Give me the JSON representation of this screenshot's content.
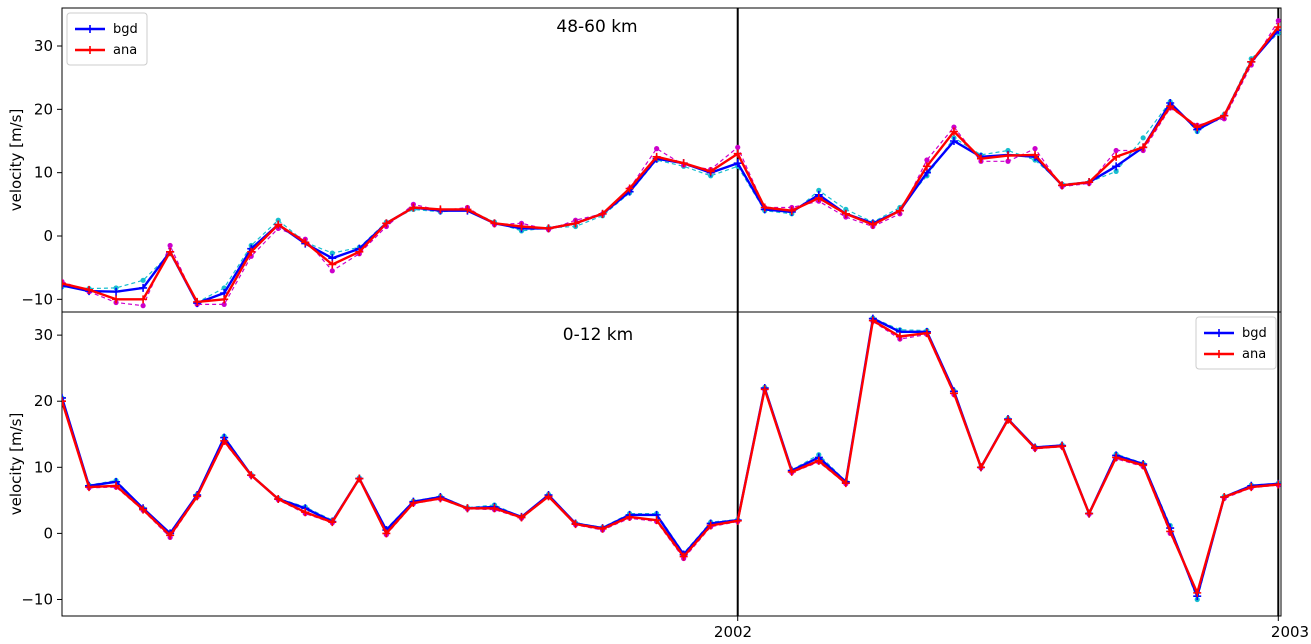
{
  "x_labels": {
    "tick_2002": "2002",
    "tick_2003": "2003"
  },
  "colors": {
    "bgd": "#0000ff",
    "ana": "#ff0000",
    "bgd_member": "#17becf",
    "ana_member": "#cc00cc",
    "vline": "#000000"
  },
  "chart_data": [
    {
      "type": "line",
      "title": "48-60 km",
      "ylabel": "velocity [m/s]",
      "ylim": [
        -12,
        36
      ],
      "yticks": [
        -10,
        0,
        10,
        20,
        30
      ],
      "xlim": [
        0,
        45.1
      ],
      "x": [
        0,
        1,
        2,
        3,
        4,
        5,
        6,
        7,
        8,
        9,
        10,
        11,
        12,
        13,
        14,
        15,
        16,
        17,
        18,
        19,
        20,
        21,
        22,
        23,
        24,
        25,
        26,
        27,
        28,
        29,
        30,
        31,
        32,
        33,
        34,
        35,
        36,
        37,
        38,
        39,
        40,
        41,
        42,
        43,
        44,
        45
      ],
      "vlines": [
        {
          "x": 25,
          "label": "2002"
        },
        {
          "x": 45,
          "label": "2003"
        }
      ],
      "legend": {
        "position": "upper left",
        "entries": [
          "bgd",
          "ana"
        ]
      },
      "series": [
        {
          "name": "bgd",
          "values": [
            -7.8,
            -8.7,
            -8.8,
            -8.2,
            -2.5,
            -10.6,
            -9,
            -2,
            1.8,
            -1.2,
            -3.5,
            -2,
            2,
            4.5,
            4,
            4,
            2,
            1.2,
            1.2,
            2,
            3.5,
            7,
            12.2,
            11.5,
            10,
            11.5,
            4.2,
            3.8,
            6.5,
            3.5,
            2,
            4,
            10,
            15,
            12.5,
            12.8,
            12.5,
            8,
            8.5,
            11,
            14,
            21,
            16.8,
            19,
            27.5,
            32.5
          ]
        },
        {
          "name": "ana",
          "values": [
            -7.5,
            -8.5,
            -10,
            -10,
            -2.5,
            -10.4,
            -10,
            -2.5,
            1.8,
            -1,
            -4.5,
            -2.5,
            2,
            4.5,
            4.2,
            4.2,
            2,
            1.5,
            1.2,
            2,
            3.5,
            7.5,
            12.5,
            11.5,
            10.2,
            13,
            4.5,
            4,
            6,
            3.5,
            1.8,
            4,
            11,
            16.5,
            12.2,
            12.7,
            12.8,
            8,
            8.5,
            12.5,
            14,
            20.5,
            17.2,
            19,
            27.5,
            33
          ]
        },
        {
          "name": "",
          "style": "member-bgd",
          "values": [
            -8,
            -8.3,
            -8.2,
            -7,
            -2.8,
            -10.5,
            -8.2,
            -1.5,
            2.5,
            -1,
            -2.7,
            -1.8,
            2.2,
            4.2,
            3.8,
            4.2,
            2.2,
            0.8,
            1.3,
            1.5,
            3.2,
            6.8,
            12,
            11,
            9.5,
            11,
            4,
            3.5,
            7.2,
            4.2,
            2.2,
            4.5,
            9.5,
            15.5,
            12.8,
            13.5,
            12,
            8.2,
            8.5,
            10.2,
            15.5,
            21.2,
            16.5,
            19.2,
            28,
            32
          ]
        },
        {
          "name": "",
          "style": "member-ana",
          "values": [
            -7.2,
            -8.8,
            -10.5,
            -11,
            -1.5,
            -10.8,
            -10.8,
            -3.2,
            1.2,
            -0.5,
            -5.5,
            -2.8,
            1.5,
            5,
            4,
            4.5,
            1.8,
            2,
            1,
            2.5,
            3.5,
            7.5,
            13.8,
            11.2,
            10.5,
            14,
            4.5,
            4.5,
            5.5,
            3,
            1.5,
            3.5,
            12,
            17.2,
            11.8,
            11.8,
            13.8,
            7.8,
            8.3,
            13.5,
            13.5,
            20.2,
            17.5,
            18.5,
            27,
            34
          ]
        }
      ]
    },
    {
      "type": "line",
      "title": "0-12 km",
      "ylabel": "velocity [m/s]",
      "ylim": [
        -12.5,
        33.5
      ],
      "yticks": [
        -10,
        0,
        10,
        20,
        30
      ],
      "xlim": [
        0,
        45.1
      ],
      "x": [
        0,
        1,
        2,
        3,
        4,
        5,
        6,
        7,
        8,
        9,
        10,
        11,
        12,
        13,
        14,
        15,
        16,
        17,
        18,
        19,
        20,
        21,
        22,
        23,
        24,
        25,
        26,
        27,
        28,
        29,
        30,
        31,
        32,
        33,
        34,
        35,
        36,
        37,
        38,
        39,
        40,
        41,
        42,
        43,
        44,
        45
      ],
      "vlines": [
        {
          "x": 25,
          "label": "2002"
        },
        {
          "x": 45,
          "label": "2003"
        }
      ],
      "legend": {
        "position": "upper right",
        "entries": [
          "bgd",
          "ana"
        ]
      },
      "series": [
        {
          "name": "bgd",
          "values": [
            20.5,
            7.2,
            7.8,
            3.8,
            0,
            5.8,
            14.5,
            8.8,
            5.2,
            3.8,
            1.8,
            8.3,
            0.5,
            4.8,
            5.5,
            3.8,
            4,
            2.5,
            5.8,
            1.5,
            0.8,
            2.8,
            2.8,
            -3.2,
            1.5,
            2,
            22,
            9.5,
            11.5,
            7.8,
            32.5,
            30.5,
            30.5,
            21.5,
            10,
            17.3,
            13,
            13.3,
            3,
            11.8,
            10.5,
            0.8,
            -9.5,
            5.5,
            7.2,
            7.5
          ]
        },
        {
          "name": "ana",
          "values": [
            20,
            7,
            7.2,
            3.6,
            -0.3,
            5.6,
            14,
            8.8,
            5.2,
            3.2,
            1.7,
            8.3,
            0,
            4.6,
            5.3,
            3.8,
            3.8,
            2.4,
            5.6,
            1.4,
            0.7,
            2.5,
            2,
            -3.5,
            1.2,
            1.9,
            21.8,
            9.3,
            11,
            7.6,
            32.2,
            29.8,
            30.3,
            21.2,
            10,
            17.2,
            12.9,
            13.2,
            3,
            11.5,
            10.3,
            0.3,
            -9,
            5.5,
            7,
            7.4
          ]
        },
        {
          "name": "",
          "style": "member-bgd",
          "values": [
            20.5,
            7.3,
            8,
            3.8,
            0.1,
            5.9,
            14.7,
            8.9,
            5.3,
            4,
            2,
            8.4,
            0.7,
            4.9,
            5.6,
            3.9,
            4.3,
            2.5,
            5.9,
            1.6,
            0.9,
            3,
            3,
            -3,
            1.7,
            2.1,
            22.1,
            9.6,
            11.9,
            7.9,
            32.6,
            30.8,
            30.7,
            21.6,
            10.1,
            17.4,
            13.1,
            13.4,
            3.1,
            12,
            10.6,
            1.2,
            -10,
            5.6,
            7.3,
            7.6
          ]
        },
        {
          "name": "",
          "style": "member-ana",
          "values": [
            20,
            6.9,
            7,
            3.5,
            -0.6,
            5.5,
            13.8,
            8.7,
            5.1,
            3,
            1.6,
            8.2,
            -0.2,
            4.5,
            5.2,
            3.7,
            3.6,
            2.3,
            5.5,
            1.3,
            0.5,
            2.3,
            1.8,
            -3.8,
            1,
            1.8,
            21.7,
            9.2,
            10.8,
            7.5,
            32.1,
            29.4,
            30.1,
            21,
            9.9,
            17.1,
            12.8,
            13.1,
            2.9,
            11.3,
            10.1,
            0,
            -8.8,
            5.3,
            6.9,
            7.3
          ]
        }
      ]
    }
  ]
}
